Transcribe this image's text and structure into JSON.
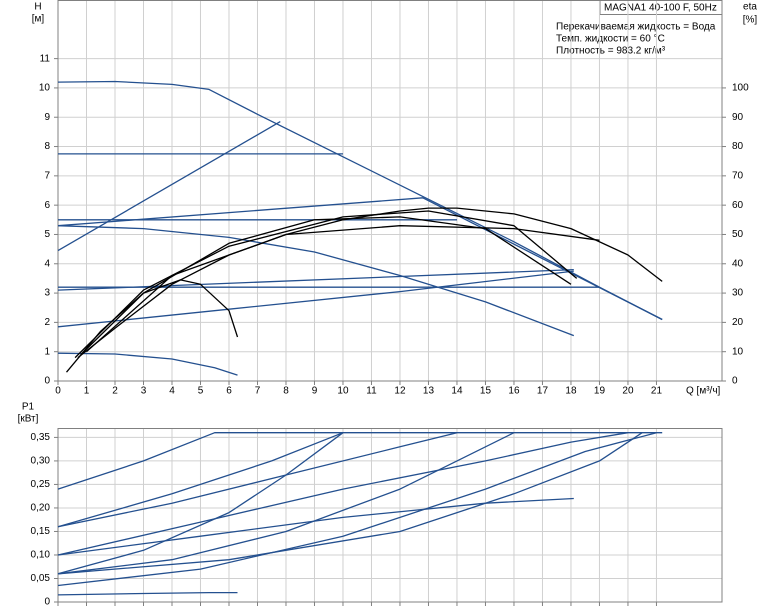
{
  "chart_data": [
    {
      "type": "line",
      "model": "MAGNA1 40-100 F, 50Hz",
      "info": [
        "Перекачиваемая жидкость = Вода",
        "Темп. жидкости = 60 °C",
        "Плотность = 983.2 кг/м³"
      ],
      "y_label": "H",
      "y_unit": "[м]",
      "y2_label": "eta",
      "y2_unit": "[%]",
      "x_label": "Q [м³/ч]",
      "xlim": [
        0,
        23.3
      ],
      "xticks": [
        0,
        1,
        2,
        3,
        4,
        5,
        6,
        7,
        8,
        9,
        10,
        11,
        12,
        13,
        14,
        15,
        16,
        17,
        18,
        19,
        20,
        21
      ],
      "ylim": [
        0,
        13
      ],
      "yticks": [
        0,
        1,
        2,
        3,
        4,
        5,
        6,
        7,
        8,
        9,
        10,
        11
      ],
      "y2lim": [
        0,
        130
      ],
      "y2ticks": [
        0,
        10,
        20,
        30,
        40,
        50,
        60,
        70,
        80,
        90,
        100
      ],
      "grid": true,
      "series": [
        {
          "color": "#24508f",
          "x": [
            0,
            2,
            4,
            5.3,
            7,
            10,
            13,
            16,
            19,
            21.2
          ],
          "values": [
            10.2,
            10.22,
            10.12,
            9.95,
            9.1,
            7.65,
            6.2,
            4.75,
            3.2,
            2.1
          ]
        },
        {
          "color": "#24508f",
          "x": [
            0,
            10
          ],
          "values": [
            7.75,
            7.75
          ]
        },
        {
          "color": "#24508f",
          "x": [
            0,
            7.8
          ],
          "values": [
            4.45,
            8.85
          ]
        },
        {
          "color": "#24508f",
          "x": [
            0,
            14
          ],
          "values": [
            5.5,
            5.5
          ]
        },
        {
          "color": "#24508f",
          "x": [
            0,
            12.8,
            21.2
          ],
          "values": [
            5.3,
            6.25,
            2.1
          ]
        },
        {
          "color": "#24508f",
          "x": [
            0,
            3,
            6,
            9,
            12,
            15,
            18.1
          ],
          "values": [
            5.3,
            5.2,
            4.9,
            4.4,
            3.6,
            2.7,
            1.55
          ]
        },
        {
          "color": "#24508f",
          "x": [
            0,
            19
          ],
          "values": [
            3.2,
            3.2
          ]
        },
        {
          "color": "#24508f",
          "x": [
            0,
            18.1
          ],
          "values": [
            3.1,
            3.8
          ]
        },
        {
          "color": "#24508f",
          "x": [
            0,
            6,
            12,
            18.1
          ],
          "values": [
            1.85,
            2.45,
            3.05,
            3.75
          ]
        },
        {
          "color": "#24508f",
          "x": [
            0,
            2,
            4,
            5.5,
            6.3
          ],
          "values": [
            0.95,
            0.92,
            0.75,
            0.45,
            0.2
          ]
        },
        {
          "color": "#000000",
          "axis": "y2",
          "x": [
            0.7,
            2,
            4,
            6,
            8,
            10,
            12,
            13,
            14,
            16,
            18,
            20,
            21.2
          ],
          "values": [
            8,
            18,
            33,
            43,
            50,
            55,
            58,
            59,
            59,
            57,
            52,
            43,
            34
          ]
        },
        {
          "color": "#000000",
          "axis": "y2",
          "x": [
            0.3,
            1.5,
            3,
            4.3,
            5,
            6,
            6.3
          ],
          "values": [
            3,
            17,
            30,
            34.5,
            33,
            24,
            15
          ]
        },
        {
          "color": "#000000",
          "axis": "y2",
          "x": [
            0.8,
            3,
            6,
            9,
            12,
            15,
            18
          ],
          "values": [
            9,
            30,
            47,
            55,
            56,
            52,
            33
          ]
        },
        {
          "color": "#000000",
          "axis": "y2",
          "x": [
            1,
            4,
            8,
            12,
            16,
            19
          ],
          "values": [
            10,
            36,
            50,
            53,
            52,
            48
          ]
        },
        {
          "color": "#000000",
          "axis": "y2",
          "x": [
            0.6,
            3,
            6,
            10,
            13,
            16,
            18.2
          ],
          "values": [
            8,
            31,
            46,
            56,
            58,
            53,
            35
          ]
        }
      ]
    },
    {
      "type": "line",
      "y_label": "P1",
      "y_unit": "[кВт]",
      "xlim": [
        0,
        23.3
      ],
      "ylim": [
        0,
        0.37
      ],
      "yticks": [
        0,
        {
          "value": 0.05,
          "label": "0,05"
        },
        {
          "value": 0.1,
          "label": "0,10"
        },
        {
          "value": 0.15,
          "label": "0,15"
        },
        {
          "value": 0.2,
          "label": "0,20"
        },
        {
          "value": 0.25,
          "label": "0,25"
        },
        {
          "value": 0.3,
          "label": "0,30"
        },
        {
          "value": 0.35,
          "label": "0,35"
        }
      ],
      "grid": true,
      "series": [
        {
          "color": "#24508f",
          "x": [
            0,
            3,
            5.3,
            6.3
          ],
          "values": [
            0.015,
            0.018,
            0.02,
            0.02
          ]
        },
        {
          "color": "#24508f",
          "x": [
            0,
            3,
            5.5,
            21.2
          ],
          "values": [
            0.24,
            0.3,
            0.36,
            0.36
          ]
        },
        {
          "color": "#24508f",
          "x": [
            0,
            4,
            7.5,
            10
          ],
          "values": [
            0.16,
            0.23,
            0.3,
            0.36
          ]
        },
        {
          "color": "#24508f",
          "x": [
            0,
            5,
            10,
            15,
            18,
            20
          ],
          "values": [
            0.1,
            0.17,
            0.24,
            0.3,
            0.34,
            0.36
          ]
        },
        {
          "color": "#24508f",
          "x": [
            0,
            3,
            6,
            8,
            10
          ],
          "values": [
            0.06,
            0.11,
            0.19,
            0.27,
            0.36
          ]
        },
        {
          "color": "#24508f",
          "x": [
            0,
            4,
            8,
            12,
            14,
            16
          ],
          "values": [
            0.06,
            0.09,
            0.15,
            0.24,
            0.3,
            0.36
          ]
        },
        {
          "color": "#24508f",
          "x": [
            0,
            5,
            10,
            15,
            18.5,
            21
          ],
          "values": [
            0.035,
            0.07,
            0.14,
            0.24,
            0.32,
            0.36
          ]
        },
        {
          "color": "#24508f",
          "x": [
            0,
            5,
            10,
            15,
            18.1
          ],
          "values": [
            0.1,
            0.14,
            0.18,
            0.21,
            0.22
          ]
        },
        {
          "color": "#24508f",
          "x": [
            0,
            6,
            12,
            16,
            19,
            20.5
          ],
          "values": [
            0.06,
            0.09,
            0.15,
            0.23,
            0.3,
            0.36
          ]
        },
        {
          "color": "#24508f",
          "x": [
            0,
            4,
            8,
            12,
            14
          ],
          "values": [
            0.16,
            0.21,
            0.27,
            0.33,
            0.36
          ]
        }
      ]
    }
  ]
}
